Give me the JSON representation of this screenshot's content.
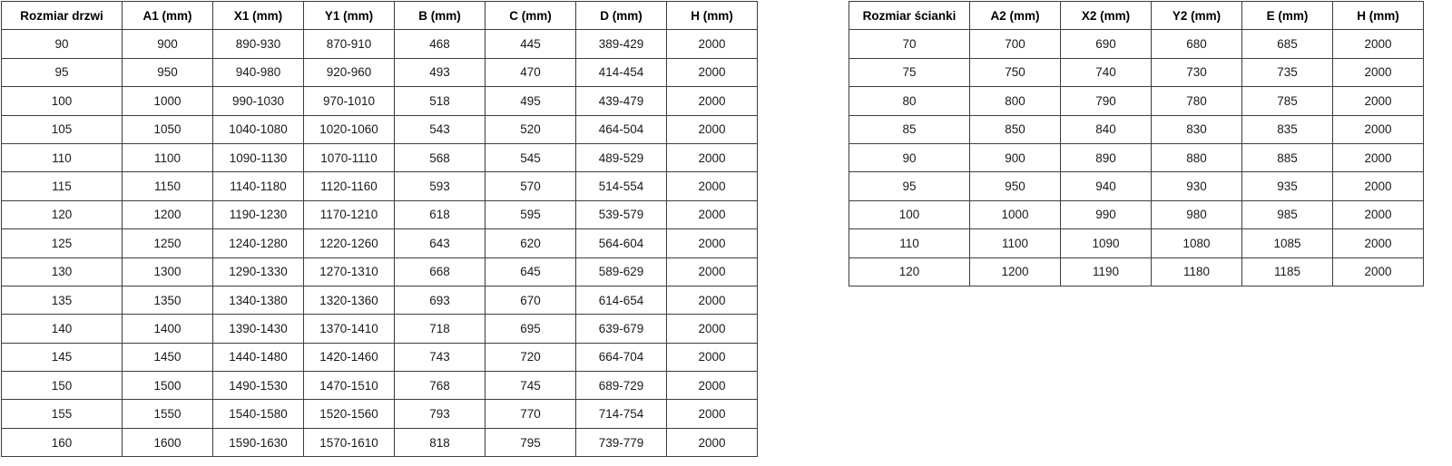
{
  "colors": {
    "background": "#ffffff",
    "border": "#3d3d3d",
    "text": "#1a1a1a"
  },
  "door_table": {
    "headers": [
      "Rozmiar drzwi",
      "A1 (mm)",
      "X1 (mm)",
      "Y1 (mm)",
      "B (mm)",
      "C (mm)",
      "D (mm)",
      "H (mm)"
    ],
    "rows": [
      [
        "90",
        "900",
        "890-930",
        "870-910",
        "468",
        "445",
        "389-429",
        "2000"
      ],
      [
        "95",
        "950",
        "940-980",
        "920-960",
        "493",
        "470",
        "414-454",
        "2000"
      ],
      [
        "100",
        "1000",
        "990-1030",
        "970-1010",
        "518",
        "495",
        "439-479",
        "2000"
      ],
      [
        "105",
        "1050",
        "1040-1080",
        "1020-1060",
        "543",
        "520",
        "464-504",
        "2000"
      ],
      [
        "110",
        "1100",
        "1090-1130",
        "1070-1110",
        "568",
        "545",
        "489-529",
        "2000"
      ],
      [
        "115",
        "1150",
        "1140-1180",
        "1120-1160",
        "593",
        "570",
        "514-554",
        "2000"
      ],
      [
        "120",
        "1200",
        "1190-1230",
        "1170-1210",
        "618",
        "595",
        "539-579",
        "2000"
      ],
      [
        "125",
        "1250",
        "1240-1280",
        "1220-1260",
        "643",
        "620",
        "564-604",
        "2000"
      ],
      [
        "130",
        "1300",
        "1290-1330",
        "1270-1310",
        "668",
        "645",
        "589-629",
        "2000"
      ],
      [
        "135",
        "1350",
        "1340-1380",
        "1320-1360",
        "693",
        "670",
        "614-654",
        "2000"
      ],
      [
        "140",
        "1400",
        "1390-1430",
        "1370-1410",
        "718",
        "695",
        "639-679",
        "2000"
      ],
      [
        "145",
        "1450",
        "1440-1480",
        "1420-1460",
        "743",
        "720",
        "664-704",
        "2000"
      ],
      [
        "150",
        "1500",
        "1490-1530",
        "1470-1510",
        "768",
        "745",
        "689-729",
        "2000"
      ],
      [
        "155",
        "1550",
        "1540-1580",
        "1520-1560",
        "793",
        "770",
        "714-754",
        "2000"
      ],
      [
        "160",
        "1600",
        "1590-1630",
        "1570-1610",
        "818",
        "795",
        "739-779",
        "2000"
      ]
    ]
  },
  "wall_table": {
    "headers": [
      "Rozmiar ścianki",
      "A2 (mm)",
      "X2 (mm)",
      "Y2 (mm)",
      "E (mm)",
      "H (mm)"
    ],
    "rows": [
      [
        "70",
        "700",
        "690",
        "680",
        "685",
        "2000"
      ],
      [
        "75",
        "750",
        "740",
        "730",
        "735",
        "2000"
      ],
      [
        "80",
        "800",
        "790",
        "780",
        "785",
        "2000"
      ],
      [
        "85",
        "850",
        "840",
        "830",
        "835",
        "2000"
      ],
      [
        "90",
        "900",
        "890",
        "880",
        "885",
        "2000"
      ],
      [
        "95",
        "950",
        "940",
        "930",
        "935",
        "2000"
      ],
      [
        "100",
        "1000",
        "990",
        "980",
        "985",
        "2000"
      ],
      [
        "110",
        "1100",
        "1090",
        "1080",
        "1085",
        "2000"
      ],
      [
        "120",
        "1200",
        "1190",
        "1180",
        "1185",
        "2000"
      ]
    ]
  }
}
